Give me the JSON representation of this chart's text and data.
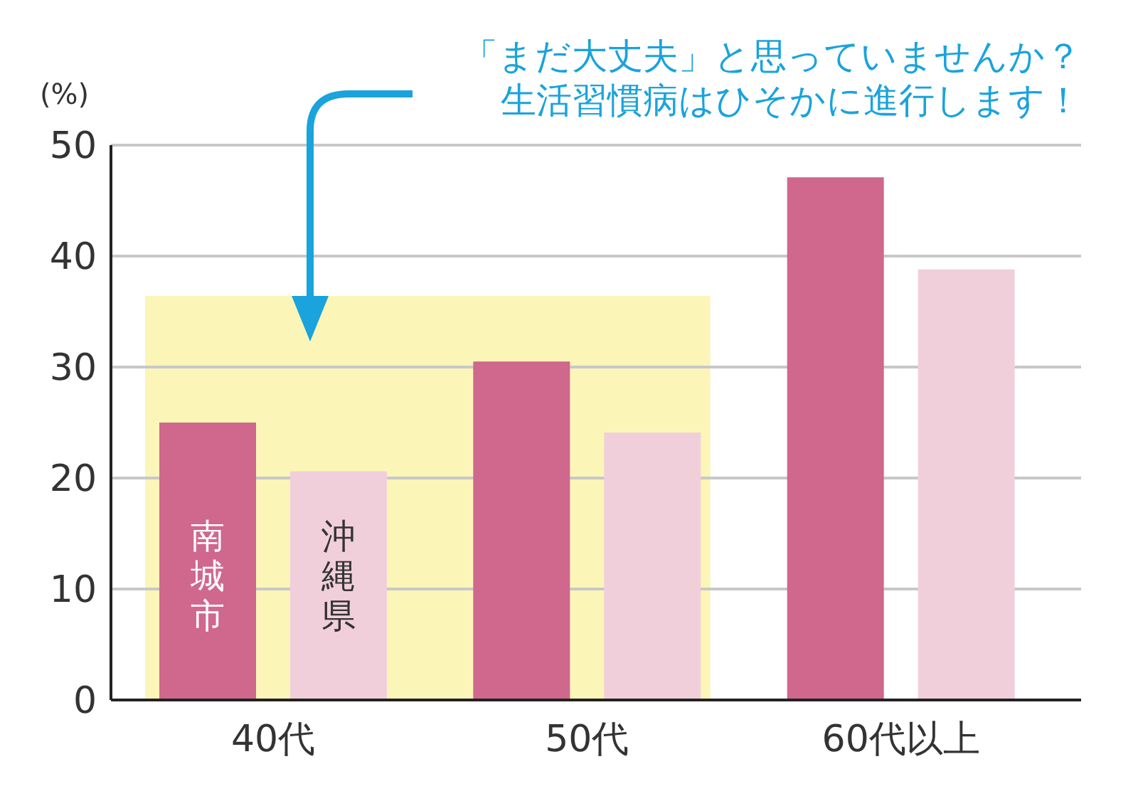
{
  "chart_data": {
    "type": "bar",
    "ylabel": "(%)",
    "categories": [
      "40代",
      "50代",
      "60代以上"
    ],
    "series": [
      {
        "name": "南城市",
        "color": "#d0678c",
        "values": [
          25,
          30.5,
          47.1
        ]
      },
      {
        "name": "沖縄県",
        "color": "#f0cfdb",
        "values": [
          20.6,
          24.1,
          38.8
        ]
      }
    ],
    "ylim": [
      0,
      50
    ],
    "yticks": [
      0,
      10,
      20,
      30,
      40,
      50
    ],
    "grid": "y",
    "legend": false,
    "bands": [
      {
        "axis": "y",
        "from": 0,
        "to": 36.4,
        "color": "#fcf5b8"
      }
    ],
    "annotations": [
      "「まだ大丈夫」と思っていませんか？",
      "生活習慣病はひそかに進行します！"
    ]
  }
}
